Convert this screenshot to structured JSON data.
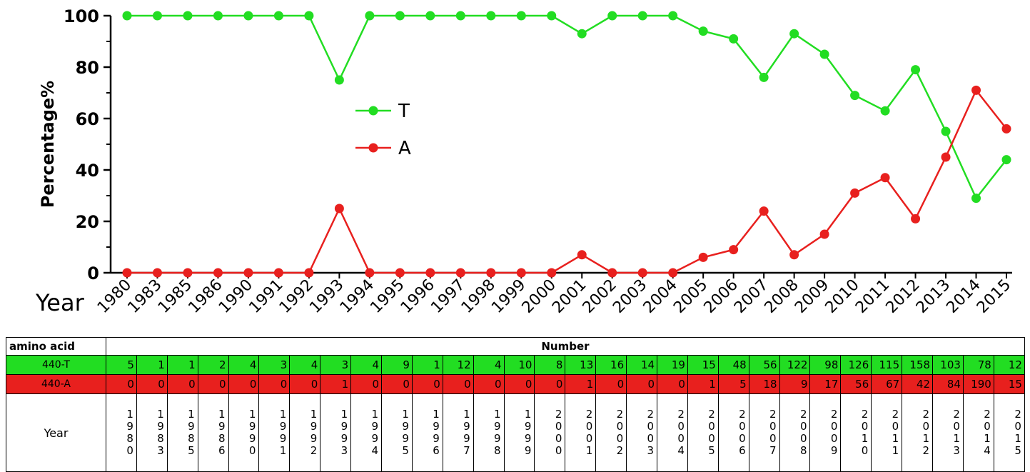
{
  "chart_data": {
    "type": "line",
    "ylabel": "Percentage%",
    "xlabel": "Year",
    "ylim": [
      0,
      100
    ],
    "yticks": [
      "0",
      "20",
      "40",
      "60",
      "80",
      "100"
    ],
    "categories": [
      "1980",
      "1983",
      "1985",
      "1986",
      "1990",
      "1991",
      "1992",
      "1993",
      "1994",
      "1995",
      "1996",
      "1997",
      "1998",
      "1999",
      "2000",
      "2001",
      "2002",
      "2003",
      "2004",
      "2005",
      "2006",
      "2007",
      "2008",
      "2009",
      "2010",
      "2011",
      "2012",
      "2013",
      "2014",
      "2015"
    ],
    "series": [
      {
        "name": "T",
        "color": "#22dd22",
        "values": [
          100,
          100,
          100,
          100,
          100,
          100,
          100,
          75,
          100,
          100,
          100,
          100,
          100,
          100,
          100,
          93,
          100,
          100,
          100,
          94,
          91,
          76,
          93,
          85,
          69,
          63,
          79,
          55,
          29,
          44
        ]
      },
      {
        "name": "A",
        "color": "#e8201e",
        "values": [
          0,
          0,
          0,
          0,
          0,
          0,
          0,
          25,
          0,
          0,
          0,
          0,
          0,
          0,
          0,
          7,
          0,
          0,
          0,
          6,
          9,
          24,
          7,
          15,
          31,
          37,
          21,
          45,
          71,
          56
        ]
      }
    ],
    "legend": "center"
  },
  "table": {
    "header_label": "amino acid",
    "header_title": "Number",
    "t_label": "440-T",
    "a_label": "440-A",
    "year_label": "Year",
    "t_counts": [
      "5",
      "1",
      "1",
      "2",
      "4",
      "3",
      "4",
      "3",
      "4",
      "9",
      "1",
      "12",
      "4",
      "10",
      "8",
      "13",
      "16",
      "14",
      "19",
      "15",
      "48",
      "56",
      "122",
      "98",
      "126",
      "115",
      "158",
      "103",
      "78",
      "12"
    ],
    "a_counts": [
      "0",
      "0",
      "0",
      "0",
      "0",
      "0",
      "0",
      "1",
      "0",
      "0",
      "0",
      "0",
      "0",
      "0",
      "0",
      "1",
      "0",
      "0",
      "0",
      "1",
      "5",
      "18",
      "9",
      "17",
      "56",
      "67",
      "42",
      "84",
      "190",
      "15"
    ]
  }
}
